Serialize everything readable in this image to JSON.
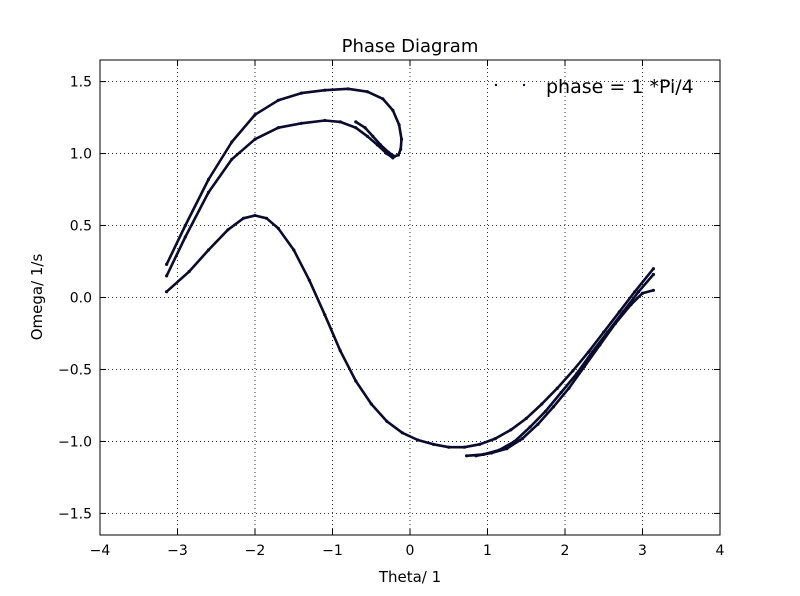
{
  "chart_data": {
    "type": "scatter",
    "title": "Phase Diagram",
    "xlabel": "Theta/ 1",
    "ylabel": "Omega/ 1/s",
    "xlim": [
      -4,
      4
    ],
    "ylim": [
      -1.65,
      1.65
    ],
    "xticks": [
      -4,
      -3,
      -2,
      -1,
      0,
      1,
      2,
      3,
      4
    ],
    "xtick_labels": [
      "−4",
      "−3",
      "−2",
      "−1",
      "0",
      "1",
      "2",
      "3",
      "4"
    ],
    "yticks": [
      -1.5,
      -1.0,
      -0.5,
      0.0,
      0.5,
      1.0,
      1.5
    ],
    "ytick_labels": [
      "−1.5",
      "−1.0",
      "−0.5",
      "0.0",
      "0.5",
      "1.0",
      "1.5"
    ],
    "grid": true,
    "legend_position": "top-right",
    "marker_color": "#0b0b2e",
    "series": [
      {
        "name": "phase = 1 *Pi/4",
        "branches": [
          {
            "id": "upper-outer",
            "points": [
              [
                -3.14,
                0.23
              ],
              [
                -2.9,
                0.5
              ],
              [
                -2.6,
                0.82
              ],
              [
                -2.3,
                1.08
              ],
              [
                -2.0,
                1.27
              ],
              [
                -1.7,
                1.37
              ],
              [
                -1.4,
                1.42
              ],
              [
                -1.1,
                1.44
              ],
              [
                -0.8,
                1.45
              ],
              [
                -0.55,
                1.43
              ],
              [
                -0.35,
                1.38
              ],
              [
                -0.22,
                1.3
              ],
              [
                -0.14,
                1.2
              ],
              [
                -0.11,
                1.1
              ],
              [
                -0.12,
                1.03
              ],
              [
                -0.15,
                0.99
              ],
              [
                -0.2,
                0.98
              ],
              [
                -0.28,
                1.01
              ],
              [
                -0.38,
                1.06
              ],
              [
                -0.48,
                1.12
              ],
              [
                -0.58,
                1.18
              ],
              [
                -0.7,
                1.22
              ]
            ]
          },
          {
            "id": "upper-inner",
            "points": [
              [
                -3.14,
                0.15
              ],
              [
                -2.9,
                0.42
              ],
              [
                -2.6,
                0.73
              ],
              [
                -2.3,
                0.96
              ],
              [
                -2.0,
                1.1
              ],
              [
                -1.7,
                1.18
              ],
              [
                -1.4,
                1.21
              ],
              [
                -1.1,
                1.23
              ],
              [
                -0.9,
                1.22
              ],
              [
                -0.7,
                1.18
              ],
              [
                -0.55,
                1.12
              ],
              [
                -0.42,
                1.06
              ],
              [
                -0.3,
                1.0
              ],
              [
                -0.22,
                0.97
              ]
            ]
          },
          {
            "id": "lower-curve",
            "points": [
              [
                -3.14,
                0.04
              ],
              [
                -2.85,
                0.18
              ],
              [
                -2.6,
                0.33
              ],
              [
                -2.35,
                0.47
              ],
              [
                -2.15,
                0.55
              ],
              [
                -2.0,
                0.57
              ],
              [
                -1.85,
                0.55
              ],
              [
                -1.7,
                0.48
              ],
              [
                -1.5,
                0.33
              ],
              [
                -1.3,
                0.12
              ],
              [
                -1.1,
                -0.12
              ],
              [
                -0.9,
                -0.37
              ],
              [
                -0.7,
                -0.58
              ],
              [
                -0.5,
                -0.74
              ],
              [
                -0.3,
                -0.86
              ],
              [
                -0.1,
                -0.94
              ],
              [
                0.1,
                -0.99
              ],
              [
                0.3,
                -1.02
              ],
              [
                0.5,
                -1.04
              ],
              [
                0.7,
                -1.04
              ],
              [
                0.9,
                -1.02
              ],
              [
                1.1,
                -0.98
              ],
              [
                1.3,
                -0.92
              ],
              [
                1.5,
                -0.84
              ],
              [
                1.7,
                -0.74
              ],
              [
                1.9,
                -0.63
              ],
              [
                2.1,
                -0.51
              ],
              [
                2.3,
                -0.38
              ],
              [
                2.5,
                -0.24
              ],
              [
                2.7,
                -0.1
              ],
              [
                2.9,
                0.04
              ],
              [
                3.14,
                0.2
              ]
            ]
          },
          {
            "id": "lower-second",
            "points": [
              [
                0.73,
                -1.1
              ],
              [
                0.95,
                -1.09
              ],
              [
                1.15,
                -1.06
              ],
              [
                1.35,
                -1.0
              ],
              [
                1.55,
                -0.9
              ],
              [
                1.75,
                -0.79
              ],
              [
                1.95,
                -0.66
              ],
              [
                2.15,
                -0.53
              ],
              [
                2.35,
                -0.38
              ],
              [
                2.55,
                -0.24
              ],
              [
                2.75,
                -0.1
              ],
              [
                2.95,
                0.04
              ],
              [
                3.14,
                0.16
              ]
            ]
          },
          {
            "id": "lower-third",
            "points": [
              [
                0.85,
                -1.1
              ],
              [
                1.05,
                -1.08
              ],
              [
                1.25,
                -1.05
              ],
              [
                1.45,
                -0.98
              ],
              [
                1.65,
                -0.88
              ],
              [
                1.85,
                -0.76
              ],
              [
                2.05,
                -0.63
              ],
              [
                2.25,
                -0.48
              ],
              [
                2.45,
                -0.33
              ],
              [
                2.65,
                -0.18
              ],
              [
                2.85,
                -0.05
              ],
              [
                3.0,
                0.03
              ],
              [
                3.14,
                0.05
              ]
            ]
          }
        ]
      }
    ]
  }
}
